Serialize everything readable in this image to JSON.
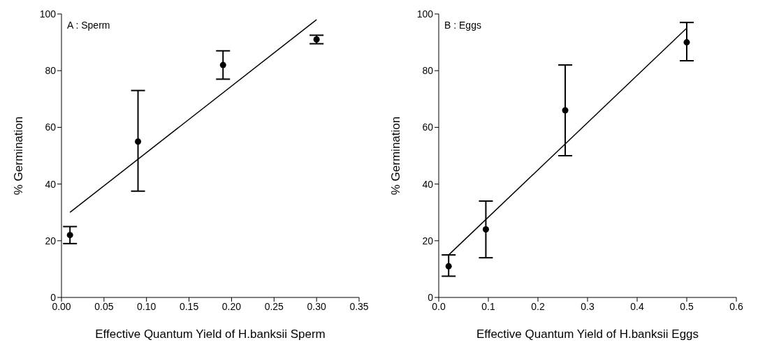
{
  "chart_data": [
    {
      "type": "scatter",
      "annotations": [
        "A : Sperm"
      ],
      "xlabel": "Effective Quantum Yield of H.banksii Sperm",
      "ylabel": "% Germination",
      "xlim": [
        0,
        0.35
      ],
      "xticks": [
        {
          "value": 0,
          "label": "0.00"
        },
        {
          "value": 0.05,
          "label": "0.05"
        },
        {
          "value": 0.1,
          "label": "0.10"
        },
        {
          "value": 0.15,
          "label": "0.15"
        },
        {
          "value": 0.2,
          "label": "0.20"
        },
        {
          "value": 0.25,
          "label": "0.25"
        },
        {
          "value": 0.3,
          "label": "0.30"
        },
        {
          "value": 0.35,
          "label": "0.35"
        }
      ],
      "ylim": [
        0,
        100
      ],
      "yticks": [
        0,
        20,
        40,
        60,
        80,
        100
      ],
      "grid": false,
      "legend": false,
      "series": [
        {
          "color": "#000000",
          "marker": "circle",
          "x": [
            0.01,
            0.09,
            0.19,
            0.3
          ],
          "values": [
            22,
            55,
            82,
            91
          ],
          "errors": [
            [
              19,
              25
            ],
            [
              37.5,
              73
            ],
            [
              77,
              87
            ],
            [
              89.5,
              92.5
            ]
          ]
        },
        {
          "type": "line",
          "color": "#000000",
          "marker": "none",
          "line_style": "solid",
          "x": [
            0.01,
            0.3
          ],
          "values": [
            30,
            98
          ]
        }
      ]
    },
    {
      "type": "scatter",
      "annotations": [
        "B : Eggs"
      ],
      "xlabel": "Effective Quantum Yield of H.banksii Eggs",
      "ylabel": "% Germination",
      "xlim": [
        0,
        0.6
      ],
      "xticks": [
        {
          "value": 0,
          "label": "0.0"
        },
        {
          "value": 0.1,
          "label": "0.1"
        },
        {
          "value": 0.2,
          "label": "0.2"
        },
        {
          "value": 0.3,
          "label": "0.3"
        },
        {
          "value": 0.4,
          "label": "0.4"
        },
        {
          "value": 0.5,
          "label": "0.5"
        },
        {
          "value": 0.6,
          "label": "0.6"
        }
      ],
      "ylim": [
        0,
        100
      ],
      "yticks": [
        0,
        20,
        40,
        60,
        80,
        100
      ],
      "grid": false,
      "legend": false,
      "series": [
        {
          "color": "#000000",
          "marker": "circle",
          "x": [
            0.02,
            0.095,
            0.255,
            0.5
          ],
          "values": [
            11,
            24,
            66,
            90
          ],
          "errors": [
            [
              7.5,
              15
            ],
            [
              14,
              34
            ],
            [
              50,
              82
            ],
            [
              83.5,
              97
            ]
          ]
        },
        {
          "type": "line",
          "color": "#000000",
          "marker": "none",
          "line_style": "solid",
          "x": [
            0.02,
            0.5
          ],
          "values": [
            15,
            95
          ]
        }
      ]
    }
  ]
}
